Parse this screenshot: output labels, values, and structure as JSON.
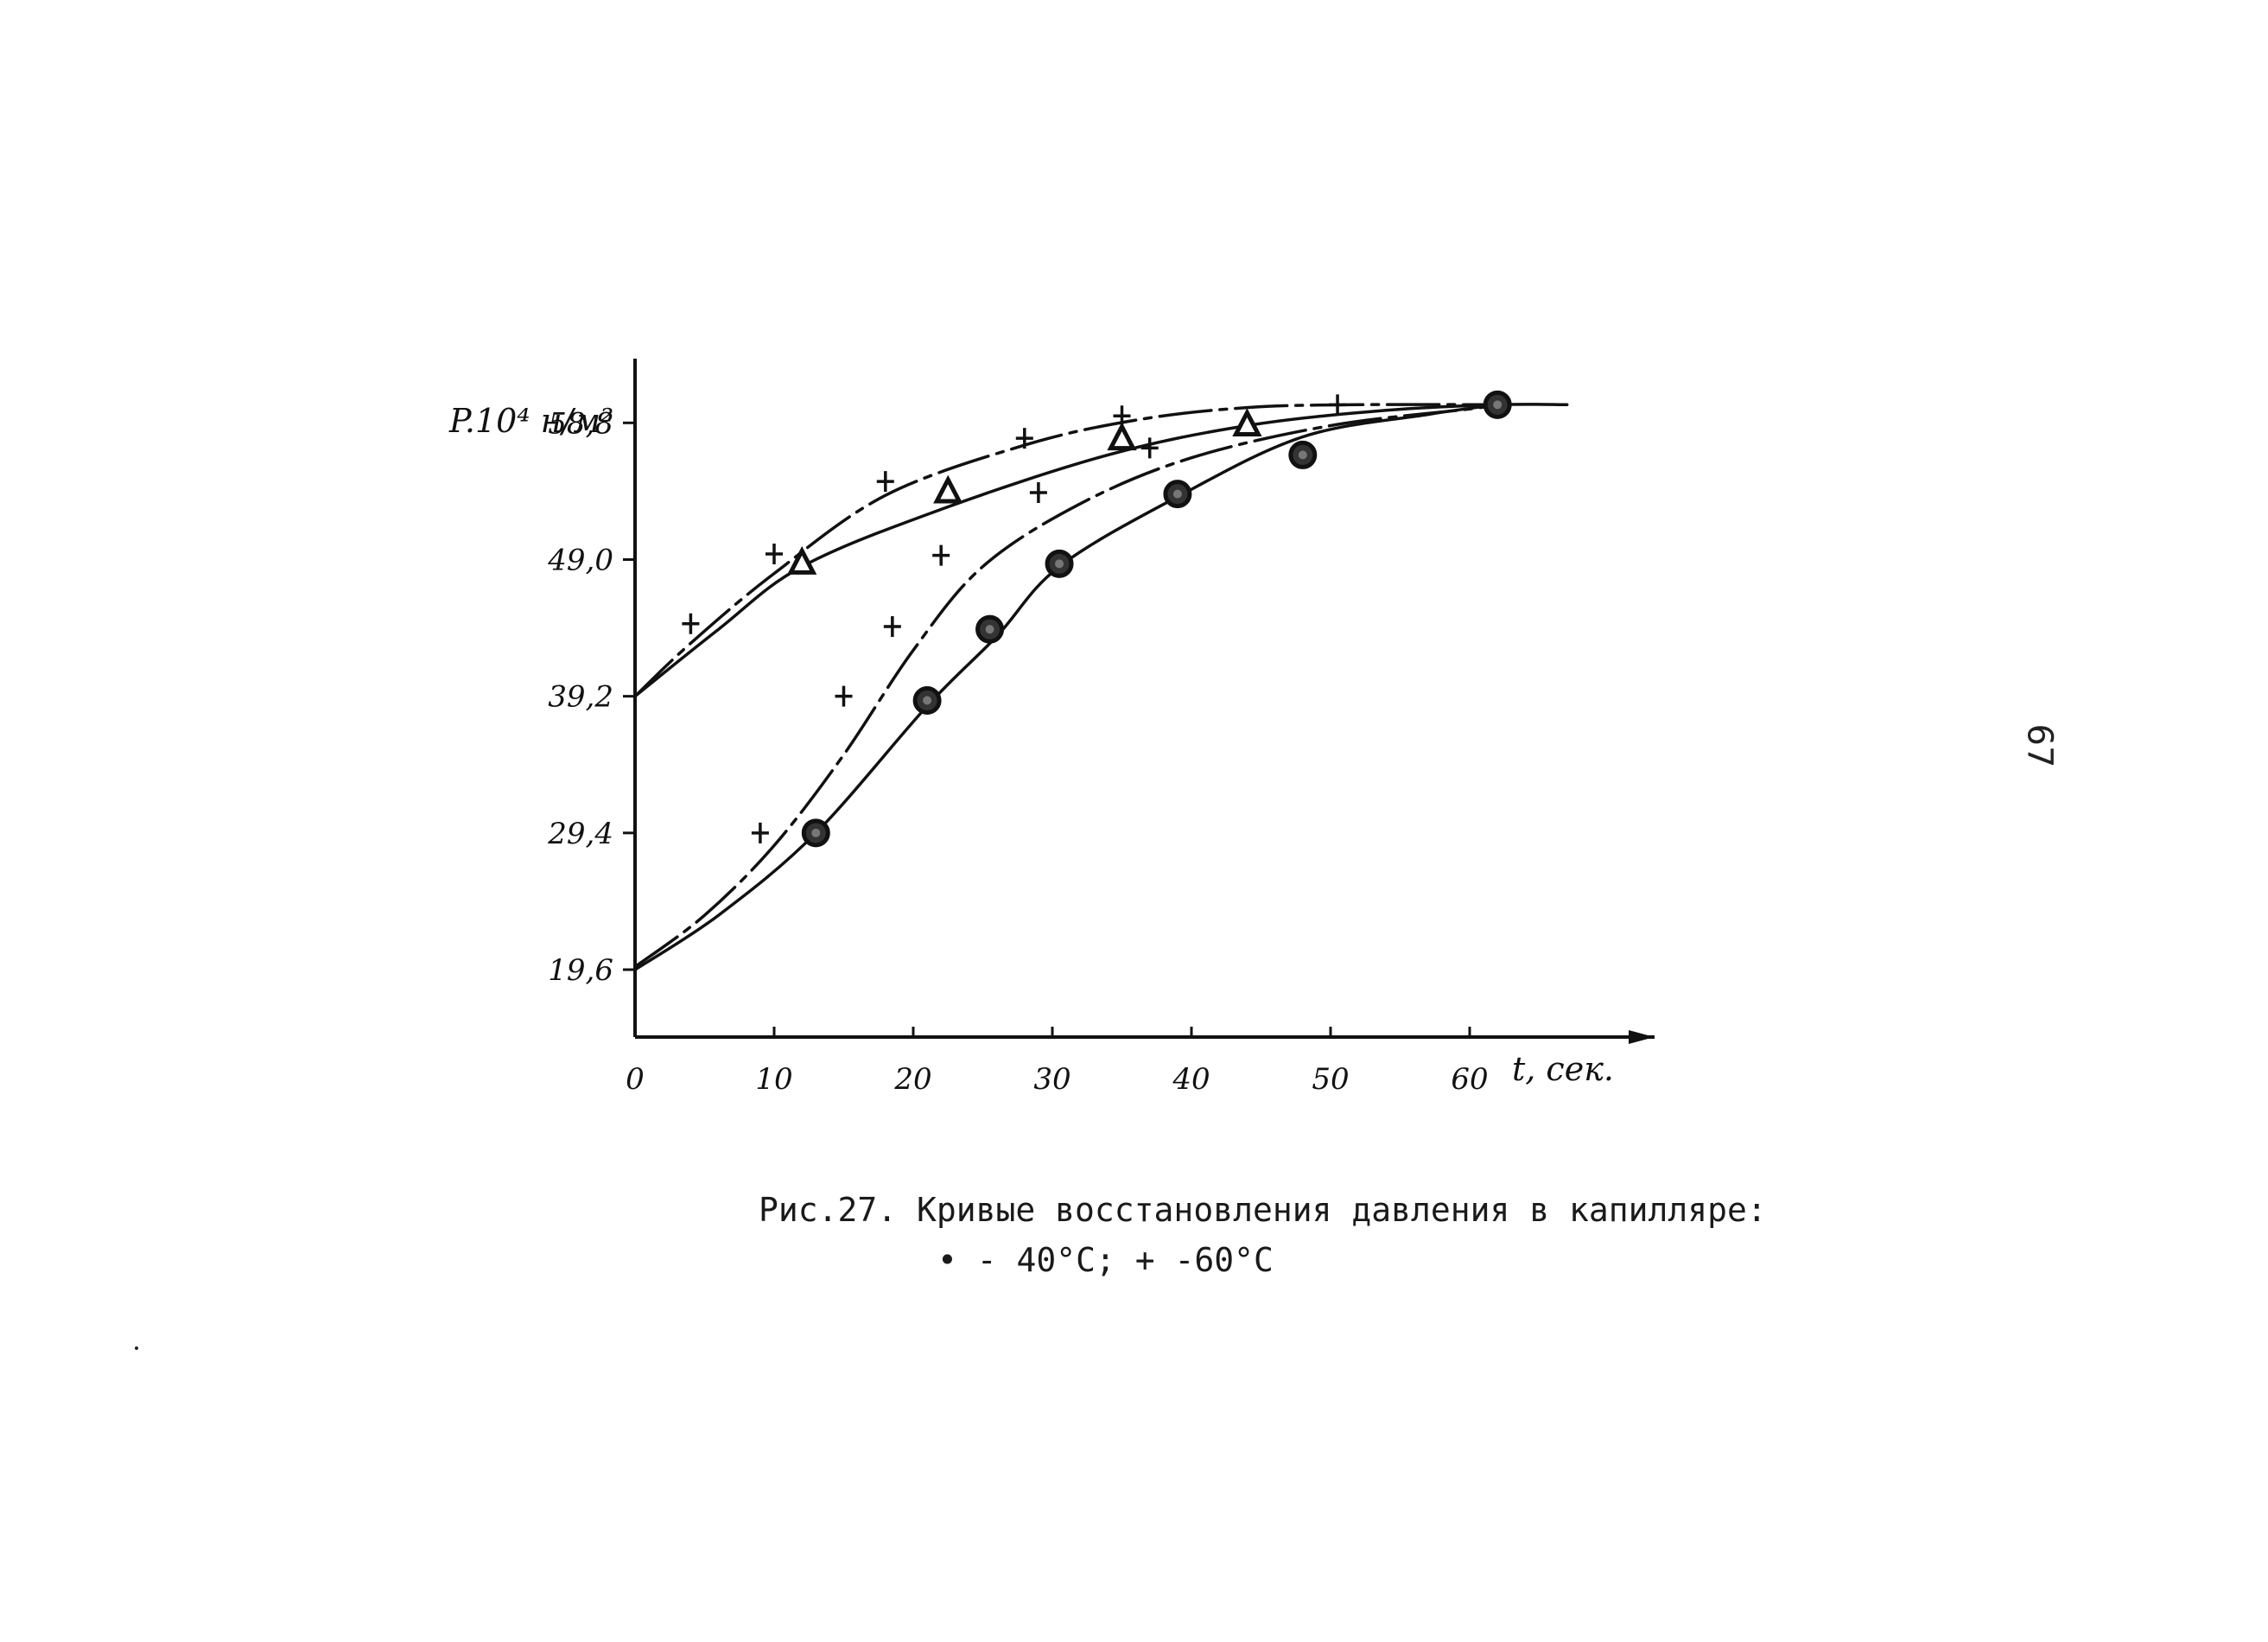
{
  "chart_data": {
    "type": "line",
    "title": "",
    "xlabel": "t, сек.",
    "ylabel": "P.10⁴ н/м²",
    "xlim": [
      0,
      72
    ],
    "ylim": [
      15,
      60
    ],
    "x_ticks": [
      0,
      10,
      20,
      30,
      40,
      50,
      60
    ],
    "x_tick_labels": [
      "0",
      "10",
      "20",
      "30",
      "40",
      "50",
      "60"
    ],
    "y_ticks": [
      19.6,
      29.4,
      39.2,
      49.0,
      58.8
    ],
    "y_tick_labels": [
      "19,6",
      "29,4",
      "39,2",
      "49,0",
      "58,8"
    ],
    "grid": false,
    "series": [
      {
        "marker": "plus",
        "dashed": true,
        "curve": [
          [
            0,
            39.2
          ],
          [
            4,
            43.0
          ],
          [
            10,
            48.0
          ],
          [
            18,
            53.6
          ],
          [
            28,
            57.2
          ],
          [
            36,
            59.0
          ],
          [
            44,
            59.9
          ],
          [
            52,
            60.1
          ],
          [
            62,
            60.1
          ]
        ],
        "points": [
          [
            4,
            44.4
          ],
          [
            10,
            49.4
          ],
          [
            18,
            54.6
          ],
          [
            28,
            57.7
          ],
          [
            35,
            59.3
          ],
          [
            50.5,
            60.1
          ]
        ]
      },
      {
        "marker": "triangle",
        "dashed": false,
        "curve": [
          [
            0,
            39.2
          ],
          [
            6,
            44.0
          ],
          [
            12,
            48.5
          ],
          [
            22,
            52.6
          ],
          [
            34,
            56.5
          ],
          [
            44,
            58.6
          ],
          [
            54,
            59.7
          ],
          [
            62,
            60.1
          ],
          [
            67,
            60.1
          ]
        ],
        "points": [
          [
            12,
            48.7
          ],
          [
            22.5,
            53.8
          ],
          [
            35,
            57.6
          ],
          [
            44,
            58.6
          ]
        ]
      },
      {
        "marker": "plus",
        "dashed": true,
        "curve": [
          [
            0,
            19.8
          ],
          [
            5,
            23.5
          ],
          [
            10,
            28.5
          ],
          [
            15,
            35.0
          ],
          [
            20,
            42.5
          ],
          [
            25,
            48.5
          ],
          [
            32,
            53.0
          ],
          [
            40,
            56.3
          ],
          [
            50,
            58.6
          ],
          [
            60,
            59.8
          ],
          [
            62,
            60.1
          ]
        ],
        "points": [
          [
            9,
            29.4
          ],
          [
            15,
            39.2
          ],
          [
            18.5,
            44.2
          ],
          [
            22,
            49.3
          ],
          [
            29,
            53.8
          ],
          [
            37,
            57.0
          ]
        ]
      },
      {
        "marker": "circle",
        "dashed": false,
        "curve": [
          [
            0,
            19.6
          ],
          [
            6,
            23.5
          ],
          [
            13,
            29.4
          ],
          [
            21,
            38.5
          ],
          [
            26,
            43.5
          ],
          [
            30.5,
            48.5
          ],
          [
            39,
            53.5
          ],
          [
            48,
            57.8
          ],
          [
            57,
            59.4
          ],
          [
            62,
            60.1
          ]
        ],
        "points": [
          [
            13,
            29.4
          ],
          [
            21,
            38.9
          ],
          [
            25.5,
            44.0
          ],
          [
            30.5,
            48.7
          ],
          [
            39,
            53.7
          ],
          [
            48,
            56.5
          ],
          [
            62,
            60.1
          ]
        ]
      }
    ]
  },
  "caption": {
    "line1": "Рис.27. Кривые восстановления давления в капилляре:",
    "line2": "• - 40°C; + -60°C"
  },
  "page_number": "67"
}
